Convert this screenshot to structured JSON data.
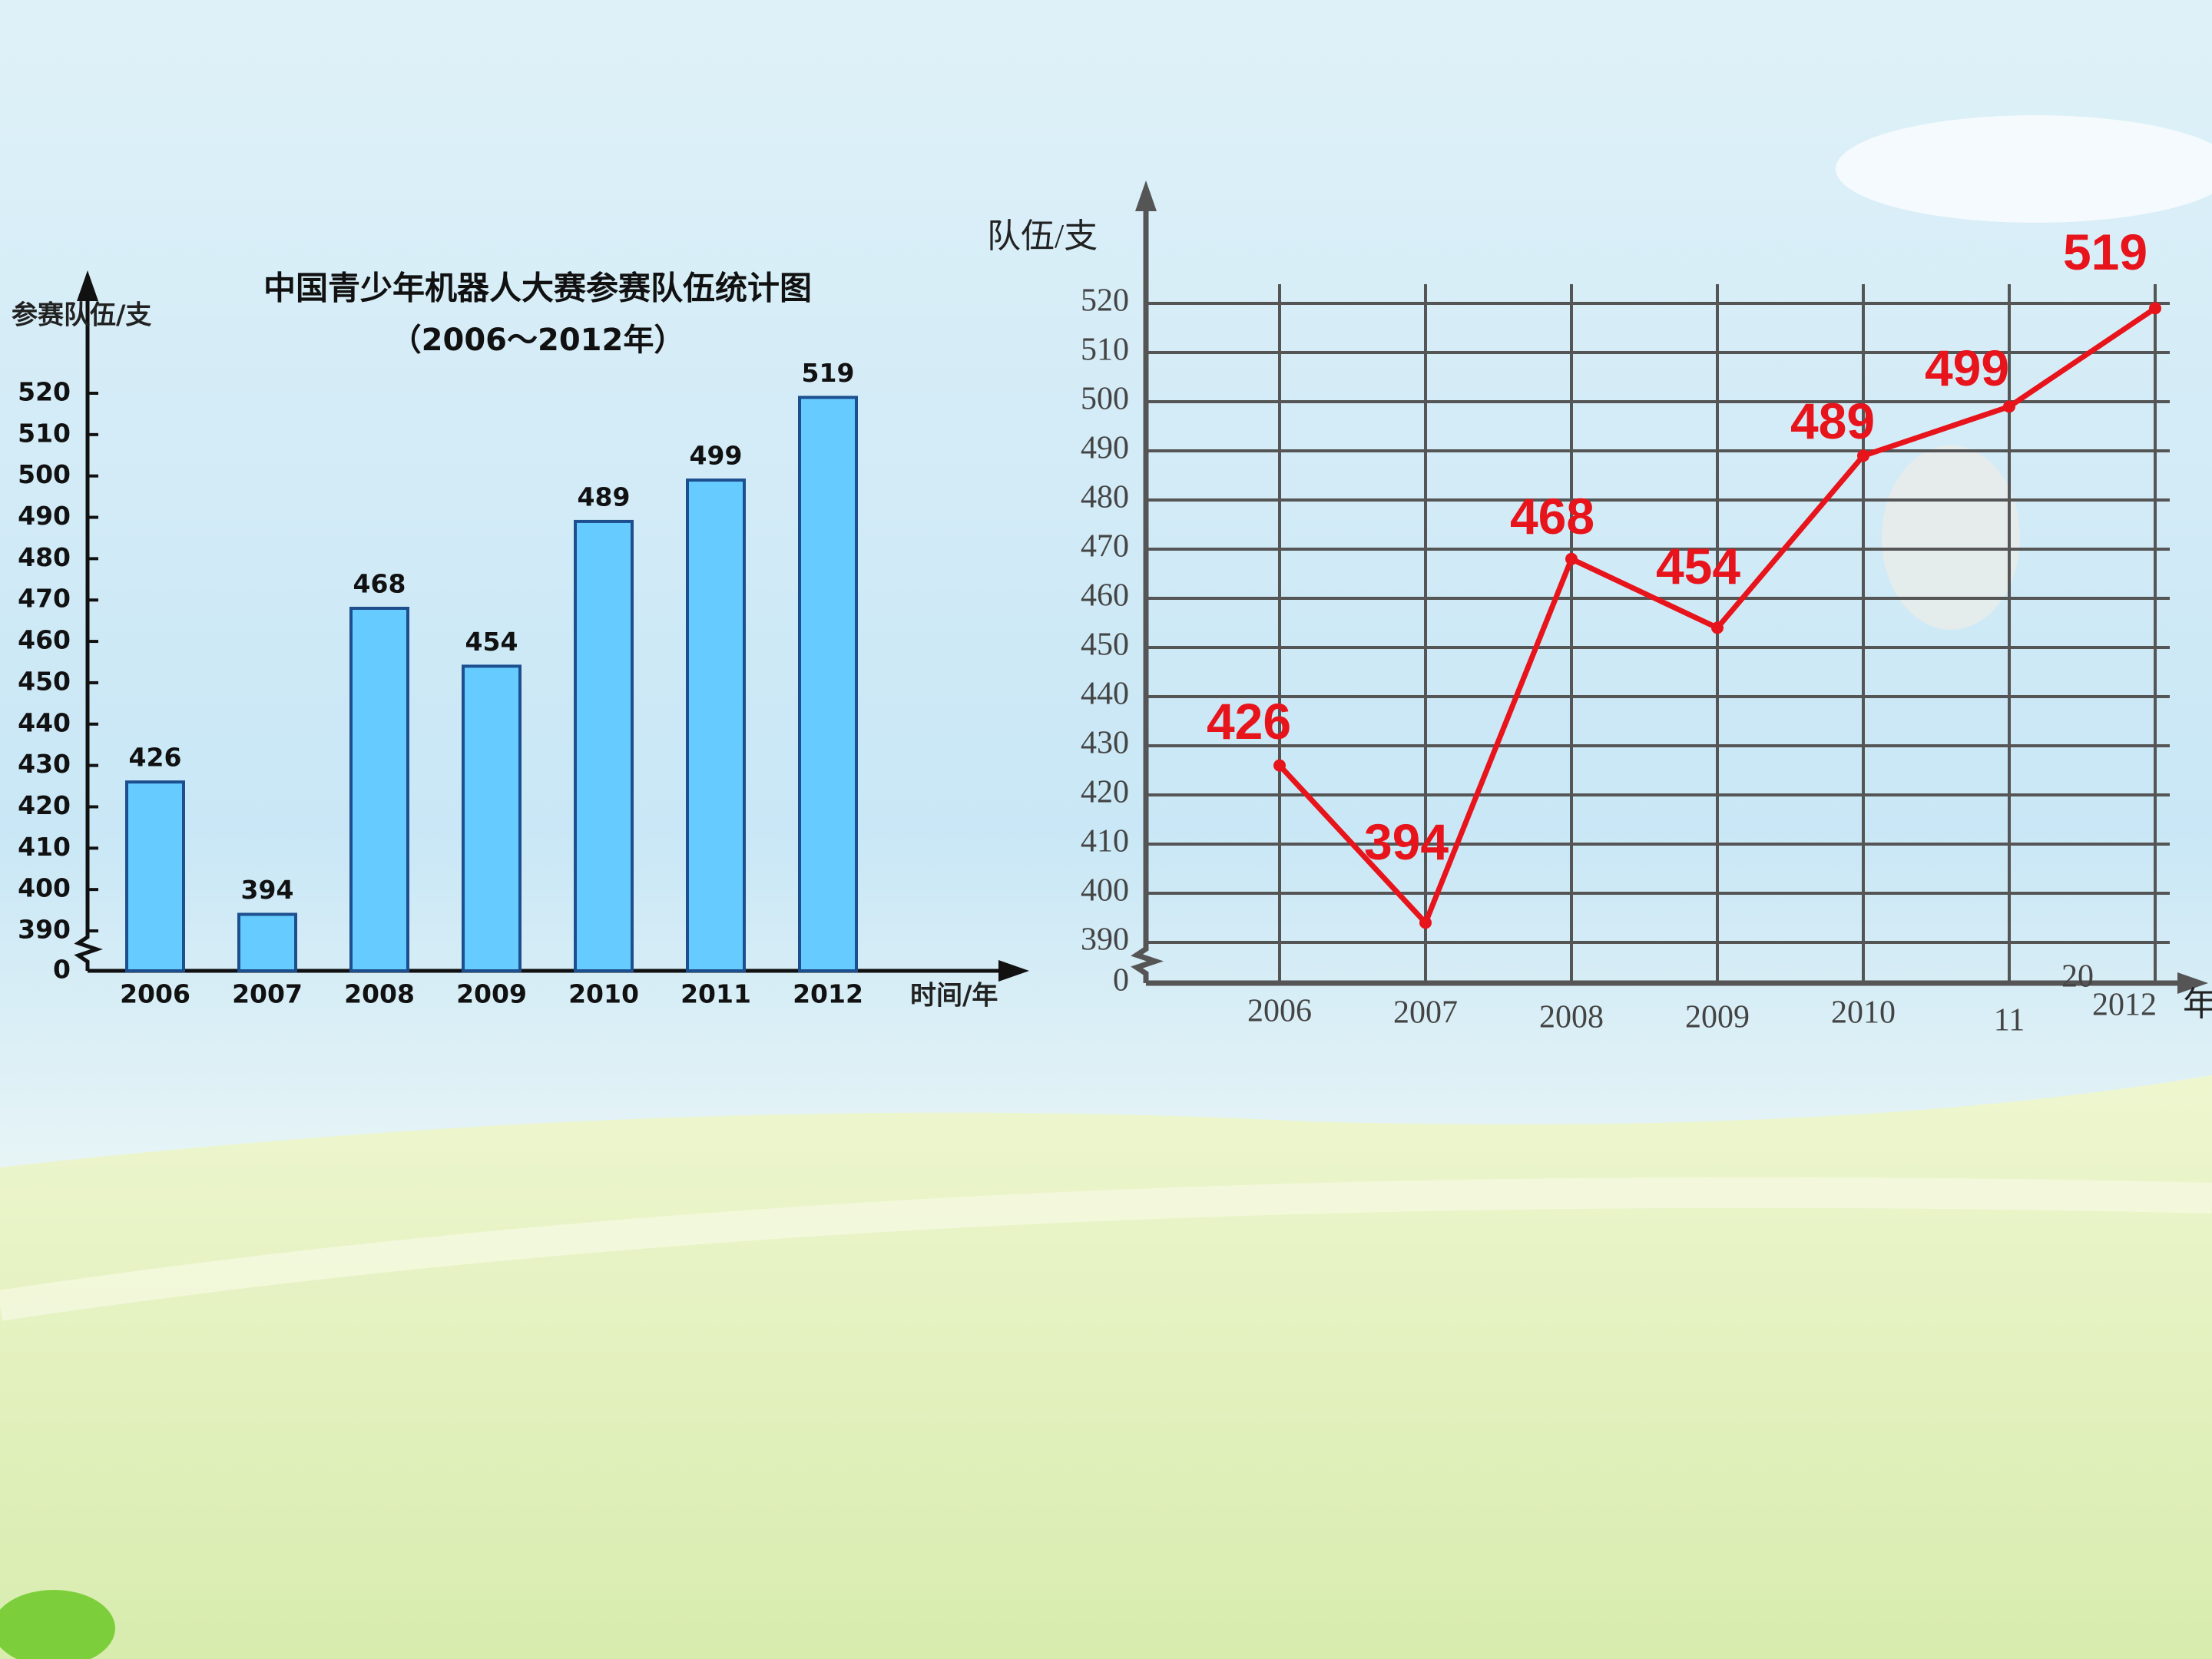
{
  "chart_data": [
    {
      "type": "bar",
      "title": "中国青少年机器人大赛参赛队伍统计图",
      "subtitle": "（2006～2012年）",
      "y_label": "参赛队伍/支",
      "x_label": "时间/年",
      "categories": [
        "2006",
        "2007",
        "2008",
        "2009",
        "2010",
        "2011",
        "2012"
      ],
      "values": [
        426,
        394,
        468,
        454,
        489,
        499,
        519
      ],
      "color": "#66ccff",
      "ylim": [
        0,
        520
      ],
      "yticks": [
        0,
        390,
        400,
        410,
        420,
        430,
        440,
        450,
        460,
        470,
        480,
        490,
        500,
        510,
        520
      ],
      "broken_axis": true,
      "grid": false
    },
    {
      "type": "line",
      "y_label": "队伍/支",
      "x_label": "年",
      "categories": [
        "2006",
        "2007",
        "2008",
        "2009",
        "2010",
        "11",
        "2012"
      ],
      "annotations": [
        "20"
      ],
      "values": [
        426,
        394,
        468,
        454,
        489,
        499,
        519
      ],
      "color": "#e8141b",
      "ylim": [
        0,
        520
      ],
      "yticks": [
        0,
        390,
        400,
        410,
        420,
        430,
        440,
        450,
        460,
        470,
        480,
        490,
        500,
        510,
        520
      ],
      "broken_axis": true,
      "grid": true
    }
  ]
}
